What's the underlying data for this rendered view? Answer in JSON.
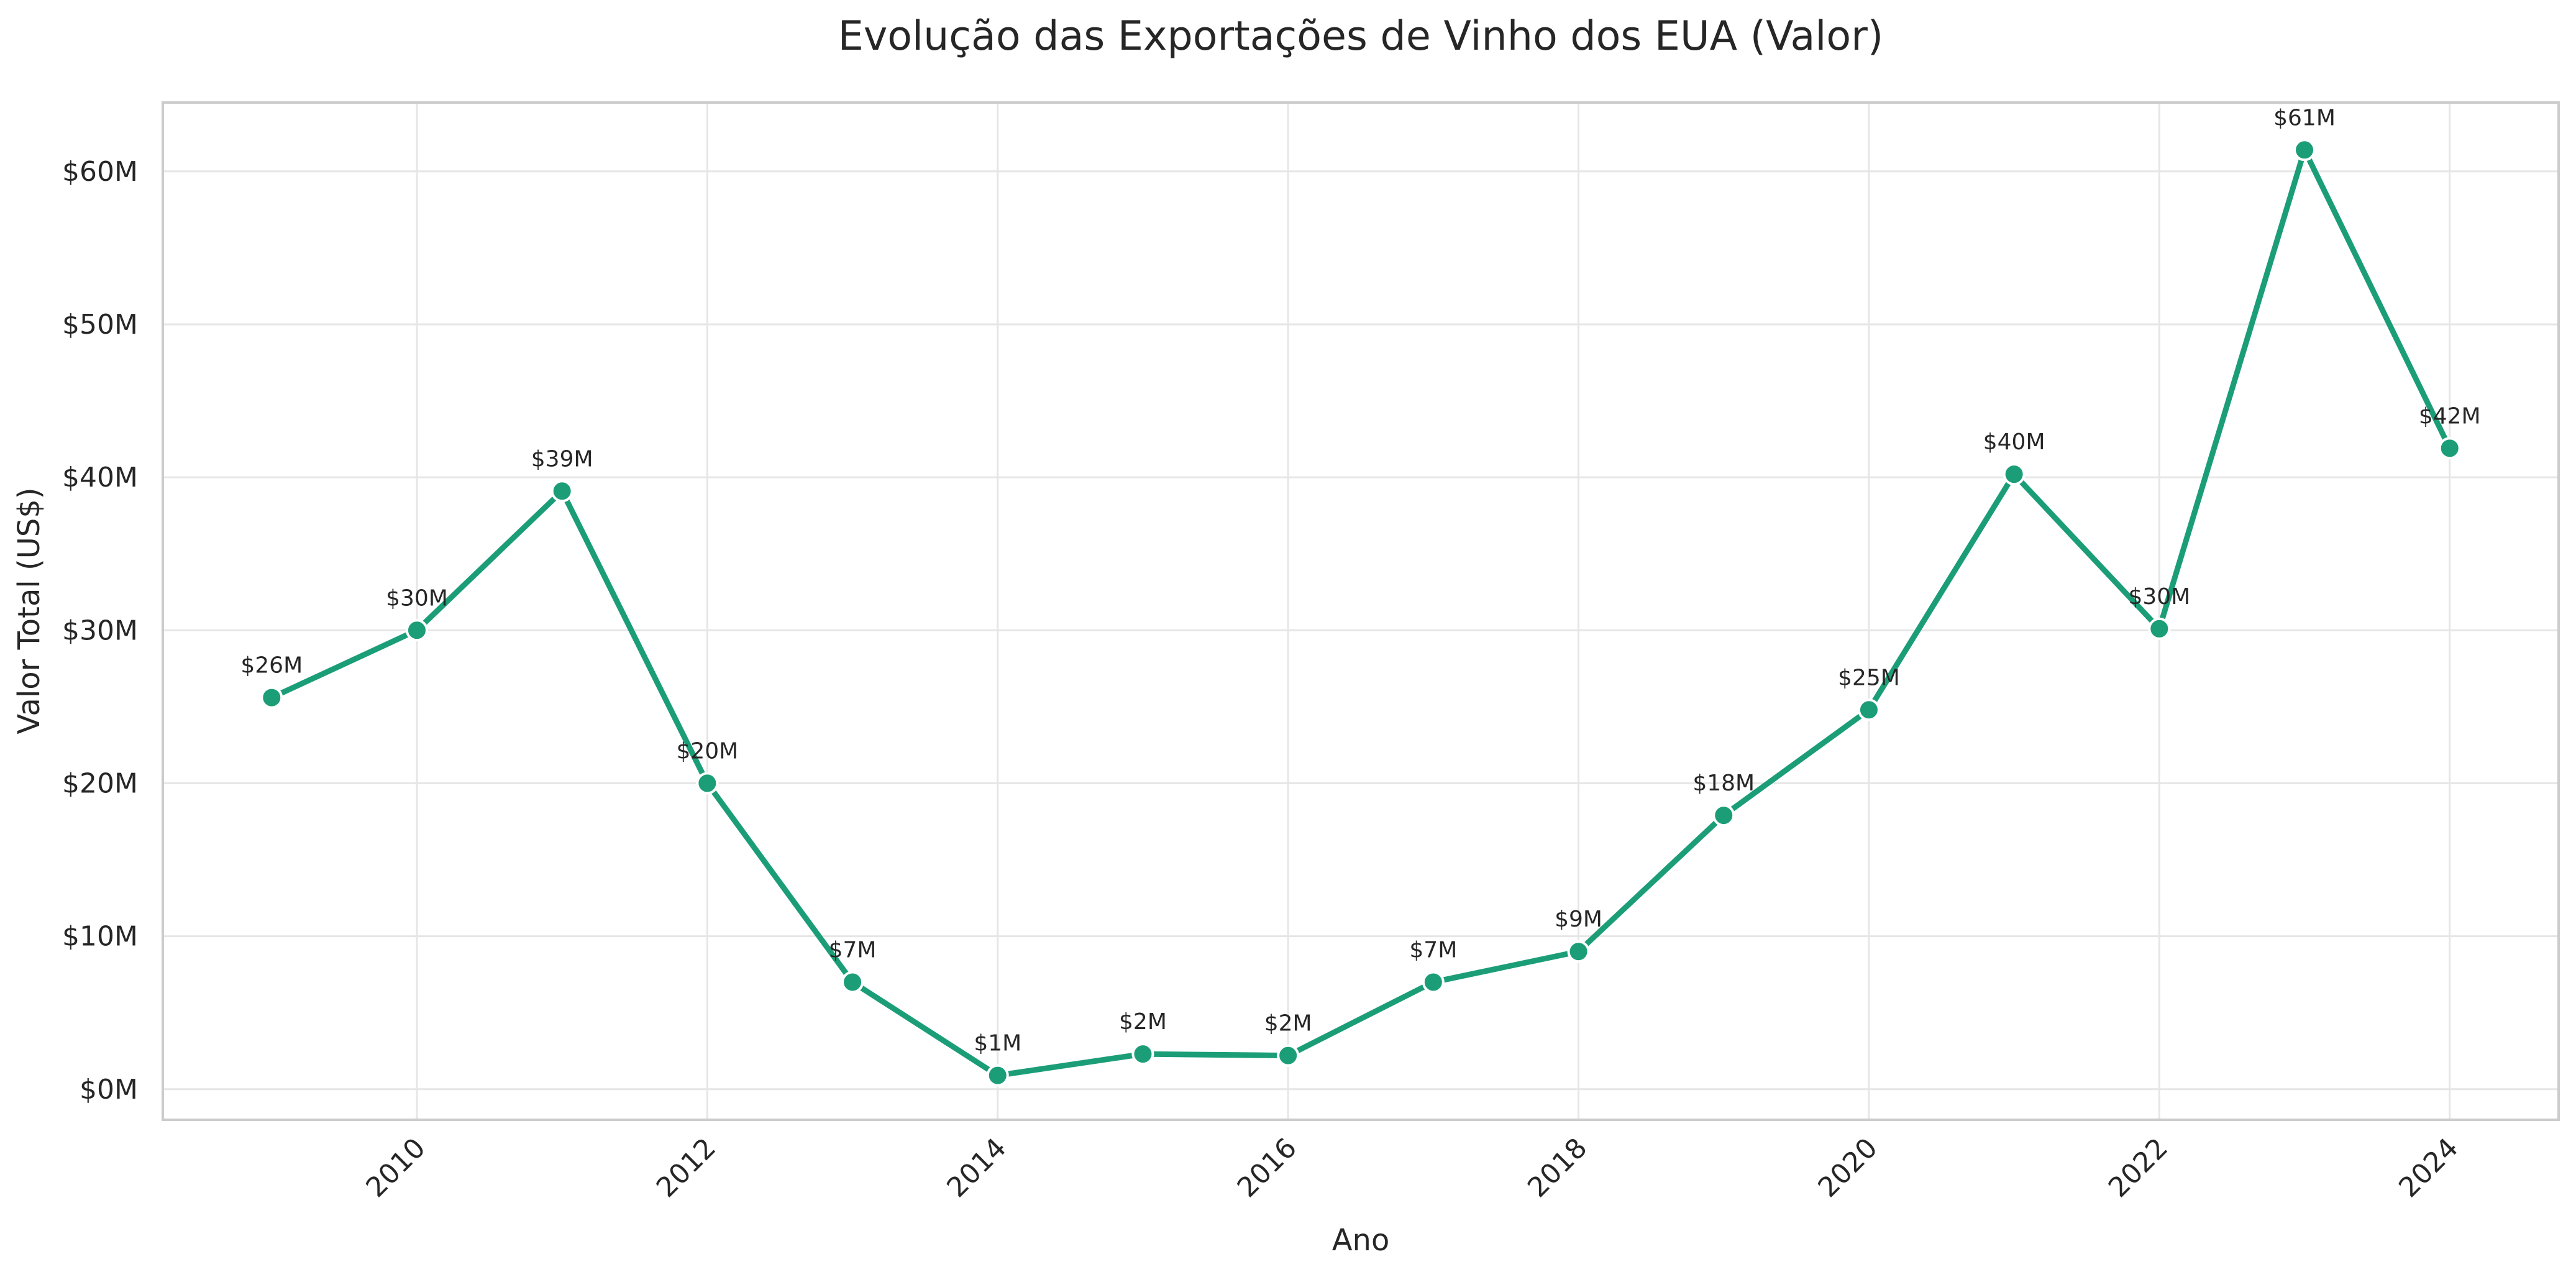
{
  "chart_data": {
    "type": "line",
    "title": "Evolução das Exportações de Vinho dos EUA (Valor)",
    "xlabel": "Ano",
    "ylabel": "Valor Total (US$)",
    "xlim": [
      2008.25,
      2024.75
    ],
    "ylim": [
      -2000000,
      64500000
    ],
    "x_ticks": [
      2010,
      2012,
      2014,
      2016,
      2018,
      2020,
      2022,
      2024
    ],
    "y_ticks": [
      0,
      10000000,
      20000000,
      30000000,
      40000000,
      50000000,
      60000000
    ],
    "y_tick_labels": [
      "$0M",
      "$10M",
      "$20M",
      "$30M",
      "$40M",
      "$50M",
      "$60M"
    ],
    "grid": true,
    "legend": "none",
    "color": "#1b9e77",
    "series": [
      {
        "x": [
          2009,
          2010,
          2011,
          2012,
          2013,
          2014,
          2015,
          2016,
          2017,
          2018,
          2019,
          2020,
          2021,
          2022,
          2023,
          2024
        ],
        "values": [
          25600000,
          30000000,
          39100000,
          20000000,
          7000000,
          900000,
          2300000,
          2200000,
          7000000,
          9000000,
          17900000,
          24800000,
          40200000,
          30100000,
          61400000,
          41900000
        ],
        "labels": [
          "$26M",
          "$30M",
          "$39M",
          "$20M",
          "$7M",
          "$1M",
          "$2M",
          "$2M",
          "$7M",
          "$9M",
          "$18M",
          "$25M",
          "$40M",
          "$30M",
          "$61M",
          "$42M"
        ]
      }
    ]
  }
}
